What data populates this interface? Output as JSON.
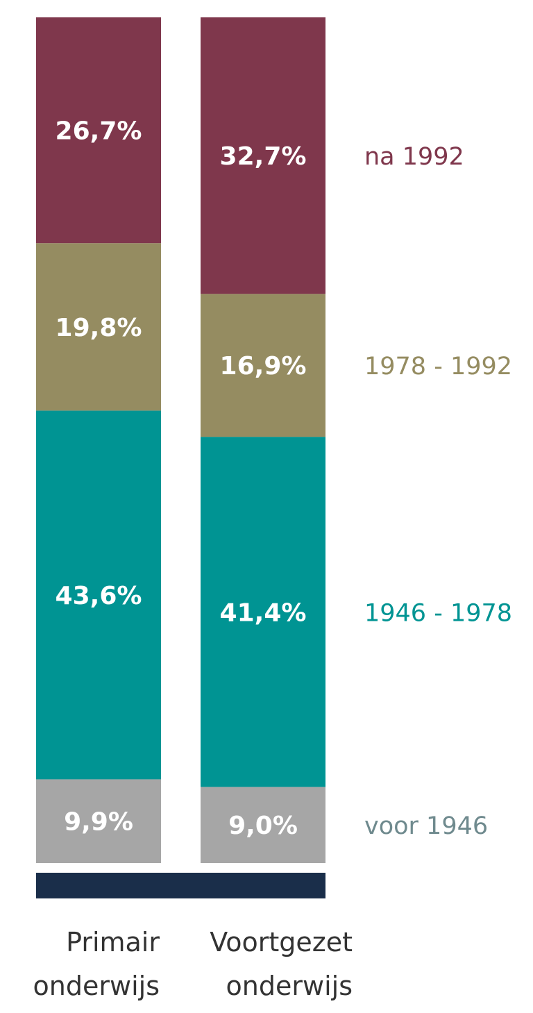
{
  "chart_data": {
    "type": "bar",
    "stacked": true,
    "percent": true,
    "title": "",
    "xlabel": "",
    "ylabel": "",
    "categories": [
      {
        "line1": "Primair",
        "line2": "onderwijs"
      },
      {
        "line1": "Voortgezet",
        "line2": "onderwijs"
      }
    ],
    "series": [
      {
        "name": "voor 1946",
        "color": "#a6a6a6",
        "values": [
          9.9,
          9.0
        ],
        "labels": [
          "9,9%",
          "9,0%"
        ],
        "legend_color": "#6f8a8e"
      },
      {
        "name": "1946 - 1978",
        "color": "#009493",
        "values": [
          43.6,
          41.4
        ],
        "labels": [
          "43,6%",
          "41,4%"
        ],
        "legend_color": "#009493"
      },
      {
        "name": "1978 - 1992",
        "color": "#958c61",
        "values": [
          19.8,
          16.9
        ],
        "labels": [
          "19,8%",
          "16,9%"
        ],
        "legend_color": "#958c61"
      },
      {
        "name": "na 1992",
        "color": "#7f374c",
        "values": [
          26.7,
          32.7
        ],
        "labels": [
          "26,7%",
          "32,7%"
        ],
        "legend_color": "#7f374c"
      }
    ],
    "baseline_color": "#1a2e4a",
    "legend_position": "right"
  }
}
